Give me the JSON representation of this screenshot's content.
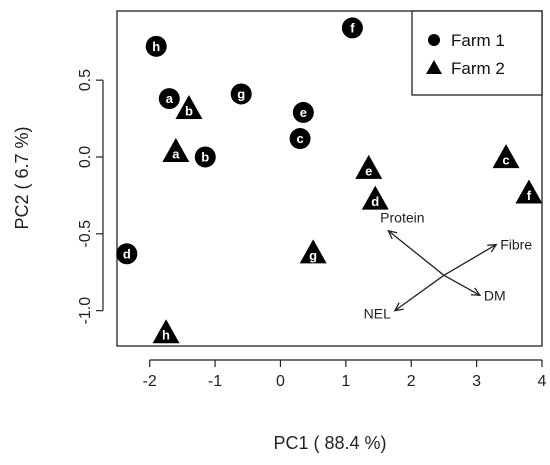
{
  "chart_data": {
    "type": "scatter",
    "xlabel": "PC1 ( 88.4 %)",
    "ylabel": "PC2 ( 6.7 %)",
    "xlim": [
      -2.5,
      4.0
    ],
    "ylim": [
      -1.23,
      0.95
    ],
    "x_ticks": [
      "-2",
      "-1",
      "0",
      "1",
      "2",
      "3",
      "4"
    ],
    "y_ticks": [
      "-1.0",
      "-0.5",
      "0.0",
      "0.5"
    ],
    "grid": false,
    "legend_position": "top-right",
    "series": [
      {
        "name": "Farm 1",
        "marker": "circle",
        "points": [
          {
            "x": -1.9,
            "y": 0.72,
            "label": "h"
          },
          {
            "x": 1.1,
            "y": 0.84,
            "label": "f"
          },
          {
            "x": -1.7,
            "y": 0.38,
            "label": "a"
          },
          {
            "x": -0.6,
            "y": 0.41,
            "label": "g"
          },
          {
            "x": 0.35,
            "y": 0.29,
            "label": "e"
          },
          {
            "x": 0.3,
            "y": 0.12,
            "label": "c"
          },
          {
            "x": -1.15,
            "y": 0.0,
            "label": "b"
          },
          {
            "x": -2.35,
            "y": -0.63,
            "label": "d"
          }
        ]
      },
      {
        "name": "Farm 2",
        "marker": "triangle",
        "points": [
          {
            "x": -1.4,
            "y": 0.31,
            "label": "b"
          },
          {
            "x": -1.6,
            "y": 0.03,
            "label": "a"
          },
          {
            "x": 1.35,
            "y": -0.08,
            "label": "e"
          },
          {
            "x": 1.45,
            "y": -0.28,
            "label": "d"
          },
          {
            "x": 3.45,
            "y": -0.01,
            "label": "c"
          },
          {
            "x": 3.8,
            "y": -0.24,
            "label": "f"
          },
          {
            "x": 0.5,
            "y": -0.63,
            "label": "g"
          },
          {
            "x": -1.75,
            "y": -1.15,
            "label": "h"
          }
        ]
      }
    ],
    "loadings": {
      "origin": [
        2.5,
        -0.77
      ],
      "vectors": [
        {
          "name": "Protein",
          "x": 1.65,
          "y": -0.48
        },
        {
          "name": "Fibre",
          "x": 3.3,
          "y": -0.57
        },
        {
          "name": "DM",
          "x": 3.05,
          "y": -0.9
        },
        {
          "name": "NEL",
          "x": 1.75,
          "y": -1.0
        }
      ]
    }
  }
}
